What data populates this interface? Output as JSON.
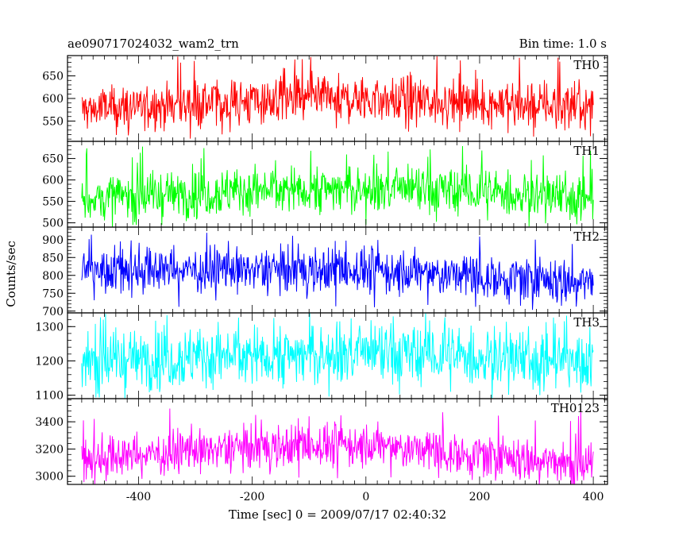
{
  "header": {
    "title": "ae090717024032_wam2_trn",
    "bin_time": "Bin time: 1.0 s"
  },
  "chart_data": {
    "type": "line",
    "xlabel": "Time [sec] 0 = 2009/07/17 02:40:32",
    "ylabel": "Counts/sec",
    "xlim": [
      -525,
      425
    ],
    "x_ticks": [
      -400,
      -200,
      0,
      200,
      400
    ],
    "x_data_range": [
      -500,
      400
    ],
    "bin_time_s": 1.0,
    "panels": [
      {
        "name": "TH0",
        "color": "#ff0000",
        "ylim": [
          505,
          695
        ],
        "yticks": [
          550,
          600,
          650
        ],
        "mean_start": 575,
        "mean_mid": 598,
        "mean_end": 582,
        "noise": 26,
        "spike_max": 695,
        "spike_min": 515
      },
      {
        "name": "TH1",
        "color": "#00ff00",
        "ylim": [
          490,
          690
        ],
        "yticks": [
          500,
          550,
          600,
          650
        ],
        "mean_start": 555,
        "mean_mid": 580,
        "mean_end": 560,
        "noise": 28,
        "spike_max": 680,
        "spike_min": 495
      },
      {
        "name": "TH2",
        "color": "#0000ff",
        "ylim": [
          695,
          935
        ],
        "yticks": [
          700,
          750,
          800,
          850,
          900
        ],
        "mean_start": 815,
        "mean_mid": 815,
        "mean_end": 780,
        "noise": 32,
        "spike_max": 920,
        "spike_min": 700
      },
      {
        "name": "TH3",
        "color": "#00ffff",
        "ylim": [
          1090,
          1340
        ],
        "yticks": [
          1100,
          1200,
          1300
        ],
        "mean_start": 1200,
        "mean_mid": 1220,
        "mean_end": 1200,
        "noise": 45,
        "spike_max": 1340,
        "spike_min": 1095
      },
      {
        "name": "TH0123",
        "color": "#ff00ff",
        "ylim": [
          2940,
          3570
        ],
        "yticks": [
          3000,
          3200,
          3400
        ],
        "mean_start": 3120,
        "mean_mid": 3230,
        "mean_end": 3080,
        "noise": 80,
        "spike_max": 3500,
        "spike_min": 2960
      }
    ]
  }
}
